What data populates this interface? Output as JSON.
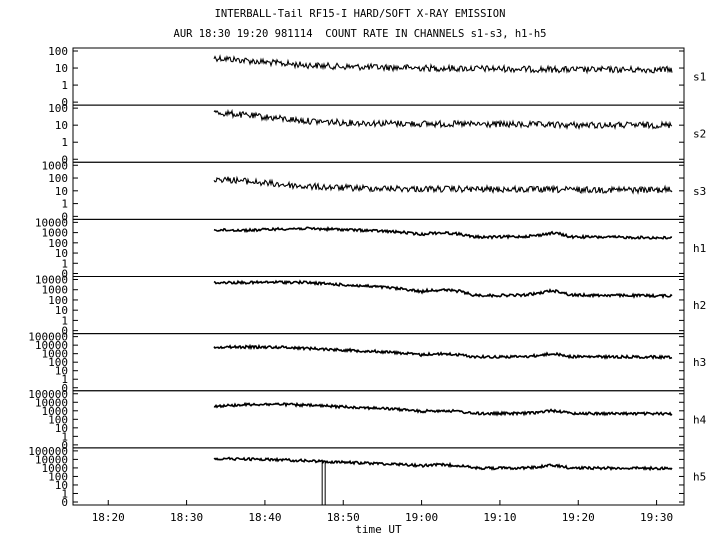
{
  "header": {
    "title": "INTERBALL-Tail RF15-I HARD/SOFT X-RAY EMISSION",
    "subtitle": "AUR 18:30 19:20 981114  COUNT RATE IN CHANNELS s1-s3, h1-h5"
  },
  "chart_data": {
    "type": "line",
    "title": "INTERBALL-Tail RF15-I HARD/SOFT X-RAY EMISSION",
    "subtitle": "AUR 18:30 19:20 981114  COUNT RATE IN CHANNELS s1-s3, h1-h5",
    "xlabel": "time UT",
    "x_ticks": [
      "18:20",
      "18:30",
      "18:40",
      "18:50",
      "19:00",
      "19:10",
      "19:20",
      "19:30"
    ],
    "xlim_minutes_after_18_00": [
      15.5,
      93.5
    ],
    "y_scale": "log",
    "grid": false,
    "panels": [
      {
        "name": "s1",
        "yticks": [
          "100",
          "10",
          "1",
          "0"
        ],
        "data_start": "18:33.5",
        "points": [
          [
            "18:33.5",
            40
          ],
          [
            "18:36",
            32
          ],
          [
            "18:40",
            22
          ],
          [
            "18:45",
            15
          ],
          [
            "18:50",
            12
          ],
          [
            "19:00",
            10
          ],
          [
            "19:10",
            9
          ],
          [
            "19:20",
            8
          ],
          [
            "19:32",
            8
          ]
        ]
      },
      {
        "name": "s2",
        "yticks": [
          "100",
          "10",
          "1",
          "0"
        ],
        "data_start": "18:33.5",
        "points": [
          [
            "18:33.5",
            55
          ],
          [
            "18:36",
            45
          ],
          [
            "18:40",
            30
          ],
          [
            "18:45",
            18
          ],
          [
            "18:50",
            14
          ],
          [
            "19:00",
            12
          ],
          [
            "19:10",
            11
          ],
          [
            "19:20",
            10
          ],
          [
            "19:32",
            10
          ]
        ]
      },
      {
        "name": "s3",
        "yticks": [
          "1000",
          "100",
          "10",
          "1",
          "0"
        ],
        "data_start": "18:33.5",
        "points": [
          [
            "18:33.5",
            85
          ],
          [
            "18:36",
            70
          ],
          [
            "18:40",
            40
          ],
          [
            "18:45",
            22
          ],
          [
            "18:50",
            17
          ],
          [
            "19:00",
            14
          ],
          [
            "19:10",
            13
          ],
          [
            "19:20",
            12
          ],
          [
            "19:32",
            12
          ]
        ]
      },
      {
        "name": "h1",
        "yticks": [
          "10000",
          "1000",
          "100",
          "10",
          "1",
          "0"
        ],
        "data_start": "18:33.5",
        "points": [
          [
            "18:33.5",
            1800
          ],
          [
            "18:38",
            1700
          ],
          [
            "18:42",
            2300
          ],
          [
            "18:45",
            2500
          ],
          [
            "18:50",
            2000
          ],
          [
            "18:55",
            1400
          ],
          [
            "18:58",
            1000
          ],
          [
            "19:00",
            650
          ],
          [
            "19:01",
            900
          ],
          [
            "19:03",
            950
          ],
          [
            "19:05",
            700
          ],
          [
            "19:06.5",
            380
          ],
          [
            "19:09",
            360
          ],
          [
            "19:13",
            420
          ],
          [
            "19:15",
            550
          ],
          [
            "19:16.5",
            900
          ],
          [
            "19:17.5",
            800
          ],
          [
            "19:19",
            380
          ],
          [
            "19:25",
            350
          ],
          [
            "19:32",
            300
          ]
        ]
      },
      {
        "name": "h2",
        "yticks": [
          "10000",
          "1000",
          "100",
          "10",
          "1",
          "0"
        ],
        "data_start": "18:33.5",
        "points": [
          [
            "18:33.5",
            5000
          ],
          [
            "18:38",
            5000
          ],
          [
            "18:42",
            5500
          ],
          [
            "18:45",
            5200
          ],
          [
            "18:50",
            3000
          ],
          [
            "18:55",
            1800
          ],
          [
            "18:58",
            1100
          ],
          [
            "19:00",
            650
          ],
          [
            "19:01",
            900
          ],
          [
            "19:03",
            950
          ],
          [
            "19:05",
            700
          ],
          [
            "19:06.5",
            300
          ],
          [
            "19:09",
            270
          ],
          [
            "19:13",
            300
          ],
          [
            "19:15",
            450
          ],
          [
            "19:16.5",
            800
          ],
          [
            "19:17.5",
            700
          ],
          [
            "19:19",
            300
          ],
          [
            "19:25",
            280
          ],
          [
            "19:32",
            250
          ]
        ]
      },
      {
        "name": "h3",
        "yticks": [
          "100000",
          "10000",
          "1000",
          "100",
          "10",
          "1",
          "0"
        ],
        "data_start": "18:33.5",
        "points": [
          [
            "18:33.5",
            6000
          ],
          [
            "18:38",
            6000
          ],
          [
            "18:42",
            5800
          ],
          [
            "18:45",
            4500
          ],
          [
            "18:50",
            2700
          ],
          [
            "18:55",
            1700
          ],
          [
            "18:58",
            1100
          ],
          [
            "19:00",
            700
          ],
          [
            "19:01",
            900
          ],
          [
            "19:03",
            950
          ],
          [
            "19:05",
            700
          ],
          [
            "19:06.5",
            450
          ],
          [
            "19:09",
            420
          ],
          [
            "19:13",
            450
          ],
          [
            "19:15",
            600
          ],
          [
            "19:16.5",
            1000
          ],
          [
            "19:17.5",
            800
          ],
          [
            "19:19",
            450
          ],
          [
            "19:25",
            420
          ],
          [
            "19:32",
            400
          ]
        ]
      },
      {
        "name": "h4",
        "yticks": [
          "100000",
          "10000",
          "1000",
          "100",
          "10",
          "1",
          "0"
        ],
        "data_start": "18:33.5",
        "points": [
          [
            "18:33.5",
            3500
          ],
          [
            "18:38",
            5500
          ],
          [
            "18:42",
            6000
          ],
          [
            "18:45",
            4500
          ],
          [
            "18:50",
            3000
          ],
          [
            "18:55",
            1900
          ],
          [
            "18:58",
            1300
          ],
          [
            "19:00",
            800
          ],
          [
            "19:01",
            1000
          ],
          [
            "19:03",
            1050
          ],
          [
            "19:05",
            800
          ],
          [
            "19:06.5",
            500
          ],
          [
            "19:09",
            470
          ],
          [
            "19:13",
            500
          ],
          [
            "19:15",
            650
          ],
          [
            "19:16.5",
            1100
          ],
          [
            "19:17.5",
            900
          ],
          [
            "19:19",
            500
          ],
          [
            "19:25",
            470
          ],
          [
            "19:32",
            450
          ]
        ]
      },
      {
        "name": "h5",
        "yticks": [
          "100000",
          "10000",
          "1000",
          "100",
          "10",
          "1",
          "0"
        ],
        "data_start": "18:33.5",
        "dropout_at": "18:47.5",
        "points": [
          [
            "18:33.5",
            12000
          ],
          [
            "18:38",
            11000
          ],
          [
            "18:42",
            9000
          ],
          [
            "18:45",
            7000
          ],
          [
            "18:50",
            4500
          ],
          [
            "18:55",
            3200
          ],
          [
            "18:58",
            2500
          ],
          [
            "19:00",
            1800
          ],
          [
            "19:01",
            2200
          ],
          [
            "19:03",
            2300
          ],
          [
            "19:05",
            1900
          ],
          [
            "19:06.5",
            1000
          ],
          [
            "19:09",
            950
          ],
          [
            "19:13",
            1000
          ],
          [
            "19:15",
            1300
          ],
          [
            "19:16.5",
            2000
          ],
          [
            "19:17.5",
            1700
          ],
          [
            "19:19",
            1000
          ],
          [
            "19:25",
            950
          ],
          [
            "19:32",
            900
          ]
        ]
      }
    ]
  }
}
